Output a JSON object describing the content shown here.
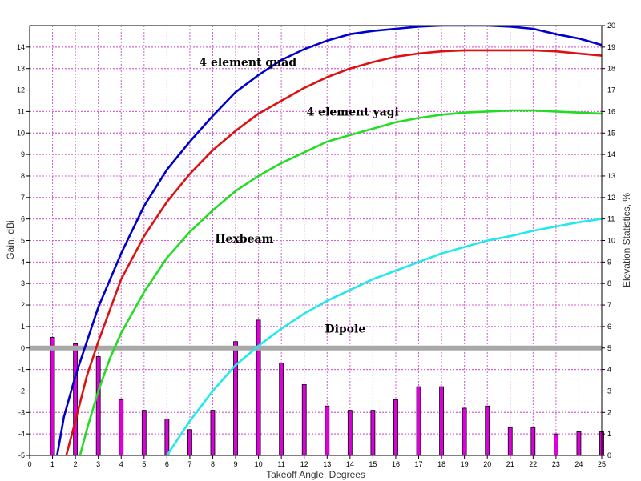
{
  "chart_data": {
    "type": "line",
    "xlabel": "Takeoff Angle, Degrees",
    "ylabel": "Gain, dBi",
    "y2label": "Elevation Statistics, %",
    "xlim": [
      0,
      25
    ],
    "ylim": [
      -5,
      15
    ],
    "y2lim": [
      0,
      20
    ],
    "x_ticks": [
      0,
      1,
      2,
      3,
      4,
      5,
      6,
      7,
      8,
      9,
      10,
      11,
      12,
      13,
      14,
      15,
      16,
      17,
      18,
      19,
      20,
      21,
      22,
      23,
      24,
      25
    ],
    "y_ticks": [
      -5,
      -4,
      -3,
      -2,
      -1,
      0,
      1,
      2,
      3,
      4,
      5,
      6,
      7,
      8,
      9,
      10,
      11,
      12,
      13,
      14
    ],
    "y2_ticks": [
      0,
      1,
      2,
      3,
      4,
      5,
      6,
      7,
      8,
      9,
      10,
      11,
      12,
      13,
      14,
      15,
      16,
      17,
      18,
      19,
      20
    ],
    "grid": true,
    "series": [
      {
        "name": "4 element quad",
        "axis": "left",
        "color": "#0000cc",
        "x": [
          1.2,
          1.5,
          2,
          3,
          4,
          5,
          6,
          7,
          8,
          9,
          10,
          11,
          12,
          13,
          14,
          15,
          16,
          17,
          18,
          19,
          20,
          21,
          22,
          23,
          24,
          25
        ],
        "y": [
          -5,
          -3.2,
          -1.3,
          1.9,
          4.4,
          6.6,
          8.3,
          9.6,
          10.8,
          11.9,
          12.7,
          13.4,
          13.9,
          14.3,
          14.6,
          14.75,
          14.85,
          14.95,
          15,
          15,
          15,
          14.95,
          14.85,
          14.6,
          14.4,
          14.1
        ]
      },
      {
        "name": "4 element yagi",
        "axis": "left",
        "color": "#dd1111",
        "x": [
          1.6,
          2,
          2.5,
          3,
          4,
          5,
          6,
          7,
          8,
          9,
          10,
          11,
          12,
          13,
          14,
          15,
          16,
          17,
          18,
          19,
          20,
          21,
          22,
          23,
          24,
          25
        ],
        "y": [
          -5,
          -3.4,
          -1.3,
          0.3,
          3.2,
          5.2,
          6.8,
          8.1,
          9.2,
          10.1,
          10.9,
          11.5,
          12.1,
          12.6,
          13,
          13.3,
          13.55,
          13.7,
          13.8,
          13.85,
          13.85,
          13.85,
          13.85,
          13.8,
          13.7,
          13.6
        ]
      },
      {
        "name": "Hexbeam",
        "axis": "left",
        "color": "#22dd22",
        "x": [
          2.2,
          2.5,
          3,
          3.5,
          4,
          5,
          6,
          7,
          8,
          9,
          10,
          11,
          12,
          13,
          14,
          15,
          16,
          17,
          18,
          19,
          20,
          21,
          22,
          23,
          24,
          25
        ],
        "y": [
          -5,
          -3.8,
          -2,
          -0.5,
          0.7,
          2.6,
          4.2,
          5.4,
          6.4,
          7.3,
          8,
          8.6,
          9.1,
          9.6,
          9.9,
          10.2,
          10.5,
          10.7,
          10.85,
          10.95,
          11,
          11.05,
          11.05,
          11,
          10.95,
          10.9
        ]
      },
      {
        "name": "Dipole",
        "axis": "left",
        "color": "#22e8ee",
        "x": [
          6,
          7,
          8,
          9,
          10,
          11,
          12,
          13,
          14,
          15,
          16,
          17,
          18,
          19,
          20,
          21,
          22,
          23,
          24,
          25
        ],
        "y": [
          -5,
          -3.4,
          -2,
          -0.8,
          0.1,
          0.9,
          1.6,
          2.2,
          2.7,
          3.2,
          3.6,
          4,
          4.4,
          4.7,
          5,
          5.2,
          5.45,
          5.65,
          5.85,
          6
        ]
      }
    ],
    "bars": {
      "name": "Elevation Statistics",
      "axis": "right",
      "color": "#dd00dd",
      "x": [
        1,
        2,
        3,
        4,
        5,
        6,
        7,
        8,
        9,
        10,
        11,
        12,
        13,
        14,
        15,
        16,
        17,
        18,
        19,
        20,
        21,
        22,
        23,
        24,
        25
      ],
      "values": [
        5.5,
        5.2,
        4.6,
        2.6,
        2.1,
        1.7,
        1.2,
        2.1,
        5.3,
        6.3,
        4.3,
        3.3,
        2.3,
        2.1,
        2.1,
        2.6,
        3.2,
        3.2,
        2.2,
        2.3,
        1.3,
        1.3,
        1,
        1.1,
        1.1
      ]
    },
    "reference_line": {
      "y": 0,
      "color": "#a8a8a8"
    },
    "labels": [
      {
        "text": "4 element quad",
        "series": 0,
        "x": 7.4,
        "y": 13.3
      },
      {
        "text": "4 element yagi",
        "series": 1,
        "x": 12.1,
        "y": 11
      },
      {
        "text": "Hexbeam",
        "series": 2,
        "x": 8.1,
        "y": 5.1
      },
      {
        "text": "Dipole",
        "series": 3,
        "x": 12.9,
        "y": 0.9
      }
    ]
  }
}
